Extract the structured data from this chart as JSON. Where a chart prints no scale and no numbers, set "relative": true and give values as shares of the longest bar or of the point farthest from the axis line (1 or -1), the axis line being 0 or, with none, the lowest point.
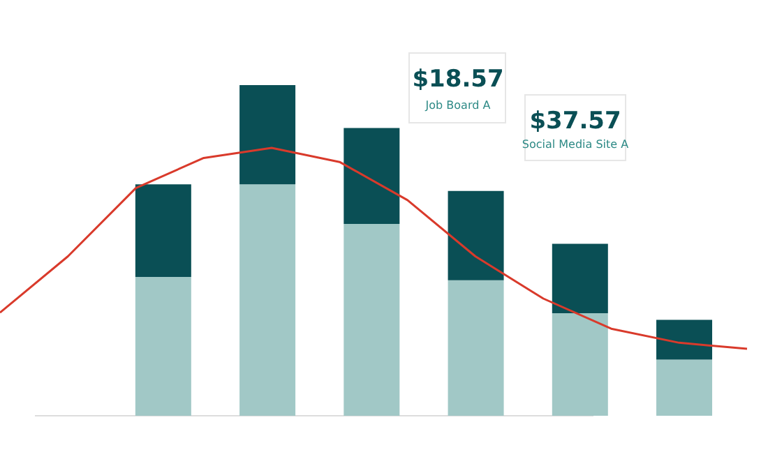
{
  "chart_data": [
    {
      "type": "bar",
      "stacked": true,
      "relative": true,
      "categories": [
        null,
        null,
        null,
        null,
        null,
        null
      ],
      "series": [
        {
          "color": "#a1c8c6",
          "values": [
            0.42,
            0.7,
            0.58,
            0.41,
            0.31,
            0.17
          ]
        },
        {
          "color": "#0a4f55",
          "values": [
            0.28,
            0.3,
            0.29,
            0.27,
            0.21,
            0.12
          ]
        }
      ],
      "annotations": [
        "$18.57",
        "Job Board A",
        "$37.57",
        "Social Media Site A"
      ]
    },
    {
      "type": "line",
      "relative": true,
      "categories": [
        null,
        null,
        null,
        null,
        null,
        null,
        null,
        null,
        null,
        null,
        null,
        null
      ],
      "series": [
        {
          "color": "#d93a2b",
          "values": [
            0.18,
            0.46,
            0.8,
            0.95,
            1.0,
            0.93,
            0.74,
            0.46,
            0.25,
            0.1,
            0.03,
            0.0
          ]
        }
      ]
    }
  ]
}
